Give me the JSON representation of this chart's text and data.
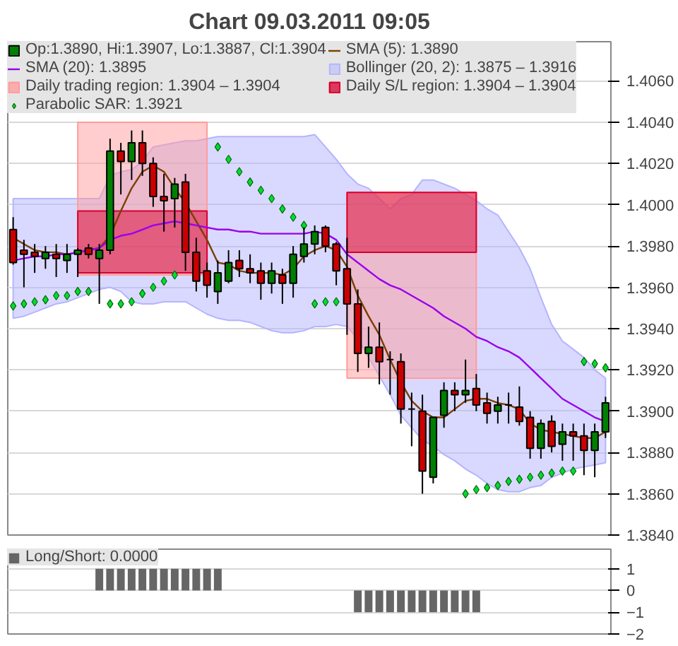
{
  "chart_data": [
    {
      "type": "candlestick",
      "title": "Chart 09.03.2011 09:05",
      "categories": [
        null,
        null,
        null,
        null,
        null,
        null,
        null,
        null,
        null,
        null,
        null,
        null,
        null,
        null,
        null,
        null,
        null,
        null,
        null,
        null,
        null,
        null,
        null,
        null,
        null,
        null,
        null,
        null,
        null,
        null,
        null,
        null,
        null,
        null,
        null,
        null,
        null,
        null,
        null,
        null,
        null,
        null,
        null,
        null,
        null,
        null,
        null,
        null,
        null,
        null,
        null,
        null,
        null,
        null,
        null,
        null
      ],
      "series": [
        {
          "type": "candlestick",
          "name": "Op:1.3890, Hi:1.3907, Lo:1.3887, Cl:1.3904",
          "ohlc": [
            [
              1.3988,
              1.3994,
              1.3971,
              1.3972
            ],
            [
              1.3978,
              1.3983,
              1.396,
              1.3976
            ],
            [
              1.3977,
              1.3981,
              1.3967,
              1.3975
            ],
            [
              1.3974,
              1.398,
              1.3969,
              1.3977
            ],
            [
              1.3976,
              1.3981,
              1.3965,
              1.3974
            ],
            [
              1.3973,
              1.3981,
              1.3967,
              1.3976
            ],
            [
              1.3976,
              1.3979,
              1.3965,
              1.3978
            ],
            [
              1.3979,
              1.3981,
              1.3974,
              1.3976
            ],
            [
              1.3974,
              1.3981,
              1.3952,
              1.3978
            ],
            [
              1.3978,
              1.4032,
              1.3976,
              1.4026
            ],
            [
              1.4026,
              1.403,
              1.4005,
              1.4021
            ],
            [
              1.4021,
              1.4036,
              1.4012,
              1.403
            ],
            [
              1.403,
              1.4036,
              1.4014,
              1.402
            ],
            [
              1.402,
              1.4023,
              1.3999,
              1.4004
            ],
            [
              1.4004,
              1.4015,
              1.3987,
              1.4002
            ],
            [
              1.4003,
              1.4013,
              1.3989,
              1.401
            ],
            [
              1.4011,
              1.4015,
              1.3968,
              1.3977
            ],
            [
              1.3977,
              1.3984,
              1.3958,
              1.3963
            ],
            [
              1.3968,
              1.3972,
              1.3955,
              1.3961
            ],
            [
              1.3958,
              1.3973,
              1.3952,
              1.3967
            ],
            [
              1.3963,
              1.3978,
              1.3962,
              1.3972
            ],
            [
              1.3973,
              1.3978,
              1.3965,
              1.3969
            ],
            [
              1.3969,
              1.3976,
              1.3962,
              1.3967
            ],
            [
              1.3968,
              1.3972,
              1.3954,
              1.3962
            ],
            [
              1.3962,
              1.3972,
              1.3957,
              1.3968
            ],
            [
              1.3966,
              1.3969,
              1.3952,
              1.3962
            ],
            [
              1.3962,
              1.398,
              1.3955,
              1.3976
            ],
            [
              1.3975,
              1.3989,
              1.3972,
              1.3981
            ],
            [
              1.3981,
              1.399,
              1.3976,
              1.3987
            ],
            [
              1.3989,
              1.399,
              1.3977,
              1.398
            ],
            [
              1.3981,
              1.3982,
              1.3961,
              1.3968
            ],
            [
              1.3969,
              1.3984,
              1.3937,
              1.3952
            ],
            [
              1.3952,
              1.3959,
              1.3919,
              1.3928
            ],
            [
              1.3928,
              1.3941,
              1.3921,
              1.3931
            ],
            [
              1.3931,
              1.3943,
              1.3913,
              1.3924
            ],
            [
              1.3925,
              1.3929,
              1.3908,
              1.3925
            ],
            [
              1.3924,
              1.3928,
              1.3894,
              1.3901
            ],
            [
              1.3901,
              1.3909,
              1.3883,
              1.3901
            ],
            [
              1.39,
              1.3908,
              1.386,
              1.3871
            ],
            [
              1.3868,
              1.3897,
              1.3865,
              1.3897
            ],
            [
              1.3898,
              1.3914,
              1.3892,
              1.391
            ],
            [
              1.391,
              1.3914,
              1.39,
              1.3908
            ],
            [
              1.3908,
              1.3925,
              1.3904,
              1.391
            ],
            [
              1.3911,
              1.3918,
              1.39,
              1.3903
            ],
            [
              1.3904,
              1.3909,
              1.3894,
              1.3899
            ],
            [
              1.39,
              1.3907,
              1.3894,
              1.3903
            ],
            [
              1.3903,
              1.3909,
              1.3894,
              1.3903
            ],
            [
              1.3902,
              1.3912,
              1.3893,
              1.3895
            ],
            [
              1.3897,
              1.39,
              1.3877,
              1.3882
            ],
            [
              1.3882,
              1.3896,
              1.3877,
              1.3894
            ],
            [
              1.3895,
              1.3898,
              1.388,
              1.3883
            ],
            [
              1.3884,
              1.3894,
              1.3876,
              1.389
            ],
            [
              1.389,
              1.3894,
              1.3876,
              1.3888
            ],
            [
              1.3888,
              1.3894,
              1.3869,
              1.3881
            ],
            [
              1.3881,
              1.3894,
              1.3868,
              1.389
            ],
            [
              1.389,
              1.3907,
              1.3887,
              1.3904
            ]
          ],
          "colors": [
            "#cc0000",
            "#cc0000",
            "#cc0000",
            "#008000",
            "#cc0000",
            "#008000",
            "#008000",
            "#cc0000",
            "#008000",
            "#008000",
            "#cc0000",
            "#008000",
            "#cc0000",
            "#cc0000",
            "#cc0000",
            "#008000",
            "#cc0000",
            "#cc0000",
            "#cc0000",
            "#008000",
            "#008000",
            "#cc0000",
            "#cc0000",
            "#cc0000",
            "#008000",
            "#cc0000",
            "#008000",
            "#008000",
            "#008000",
            "#cc0000",
            "#cc0000",
            "#cc0000",
            "#cc0000",
            "#008000",
            "#cc0000",
            "#000000",
            "#cc0000",
            "#000000",
            "#cc0000",
            "#008000",
            "#008000",
            "#cc0000",
            "#008000",
            "#cc0000",
            "#cc0000",
            "#008000",
            "#000000",
            "#cc0000",
            "#cc0000",
            "#008000",
            "#cc0000",
            "#008000",
            "#cc0000",
            "#cc0000",
            "#008000",
            "#008000"
          ]
        },
        {
          "type": "line",
          "name": "SMA (5): 1.3890",
          "color": "#7b3f00",
          "values": [
            1.3984,
            1.3981,
            1.3978,
            1.3977,
            1.3977,
            1.3976,
            1.3977,
            1.3978,
            1.3979,
            1.3985,
            1.3997,
            1.4008,
            1.4016,
            1.4019,
            1.4016,
            1.4008,
            1.4001,
            1.3992,
            1.3983,
            1.3972,
            1.3971,
            1.3968,
            1.3967,
            1.3967,
            1.3967,
            1.3966,
            1.3969,
            1.3975,
            1.3978,
            1.398,
            1.3978,
            1.397,
            1.3956,
            1.3946,
            1.3937,
            1.3925,
            1.3914,
            1.3905,
            1.39,
            1.3897,
            1.3897,
            1.3901,
            1.3905,
            1.3906,
            1.3906,
            1.3904,
            1.3903,
            1.3901,
            1.3894,
            1.3891,
            1.389,
            1.3889,
            1.3888,
            1.3887,
            1.3887,
            1.389
          ]
        },
        {
          "type": "line",
          "name": "SMA (20): 1.3895",
          "color": "#9900ee",
          "values": [
            1.3973,
            1.3974,
            1.3975,
            1.3975,
            1.3976,
            1.3976,
            1.3977,
            1.3978,
            1.3979,
            1.3983,
            1.3985,
            1.3986,
            1.3988,
            1.399,
            1.3991,
            1.3992,
            1.3991,
            1.399,
            1.3989,
            1.3988,
            1.3988,
            1.3987,
            1.3987,
            1.3986,
            1.3986,
            1.3986,
            1.3986,
            1.3986,
            1.3987,
            1.3986,
            1.3983,
            1.3976,
            1.3972,
            1.3968,
            1.3964,
            1.3961,
            1.3959,
            1.3956,
            1.3953,
            1.395,
            1.3946,
            1.3943,
            1.394,
            1.3936,
            1.3934,
            1.3931,
            1.3929,
            1.3926,
            1.3921,
            1.3916,
            1.3911,
            1.3906,
            1.3903,
            1.39,
            1.3897,
            1.3895
          ]
        },
        {
          "type": "line",
          "name": "Bollinger (20, 2): 1.3875 – 1.3916",
          "color": "#b4b4ff",
          "values": [
            null,
            null,
            null,
            null,
            null,
            null,
            null,
            null,
            null,
            null,
            null,
            null,
            null,
            null,
            null,
            null,
            null,
            null,
            null,
            null,
            null,
            null,
            null,
            null,
            null,
            null,
            null,
            null,
            null,
            null,
            null,
            null,
            null,
            null,
            null,
            null,
            null,
            null,
            null,
            null,
            null,
            null,
            null,
            null,
            null,
            null,
            null,
            null,
            null,
            null,
            null,
            null,
            null,
            null,
            null,
            null
          ],
          "upper": [
            1.4003,
            1.4003,
            1.4003,
            1.4003,
            1.4003,
            1.4003,
            1.4003,
            1.4003,
            1.4003,
            1.4014,
            1.4016,
            1.4017,
            1.4021,
            1.4028,
            1.4029,
            1.403,
            1.4031,
            1.4031,
            1.4032,
            1.4033,
            1.4033,
            1.4033,
            1.4033,
            1.4033,
            1.4033,
            1.4033,
            1.4033,
            1.4033,
            1.4034,
            1.4028,
            1.4022,
            1.4015,
            1.401,
            1.4008,
            1.4003,
            1.3998,
            1.4003,
            1.4005,
            1.4012,
            1.4012,
            1.401,
            1.4008,
            1.4005,
            1.4002,
            1.3998,
            1.3995,
            1.3987,
            1.3979,
            1.3969,
            1.3955,
            1.3942,
            1.3934,
            1.393,
            1.3926,
            1.392,
            1.3916
          ],
          "lower": [
            1.3945,
            1.3946,
            1.3948,
            1.395,
            1.3952,
            1.3953,
            1.3955,
            1.3957,
            1.3959,
            1.396,
            1.3958,
            1.3953,
            1.3952,
            1.3952,
            1.3953,
            1.3953,
            1.3953,
            1.395,
            1.3947,
            1.3945,
            1.3944,
            1.3944,
            1.3943,
            1.3941,
            1.3939,
            1.3938,
            1.3938,
            1.3939,
            1.3941,
            1.3941,
            1.3942,
            1.3941,
            1.3935,
            1.3926,
            1.3917,
            1.3908,
            1.3898,
            1.3892,
            1.3886,
            1.3883,
            1.3879,
            1.3876,
            1.3872,
            1.3869,
            1.3865,
            1.3862,
            1.3861,
            1.3861,
            1.3863,
            1.3864,
            1.3868,
            1.387,
            1.3872,
            1.3873,
            1.3874,
            1.3875
          ]
        },
        {
          "type": "line",
          "name": "Daily trading region: 1.3904 – 1.3904",
          "color": "#ff9c9c",
          "values": [
            null,
            null,
            null,
            null,
            null,
            null,
            null,
            null,
            null,
            null,
            null,
            null,
            null,
            null,
            null,
            null,
            null,
            null,
            null,
            null,
            null,
            null,
            null,
            null,
            null,
            null,
            null,
            null,
            null,
            null,
            null,
            null,
            null,
            null,
            null,
            null,
            null,
            null,
            null,
            null,
            null,
            null,
            null,
            null,
            null,
            null,
            null,
            null,
            null,
            null,
            null,
            null,
            null,
            null,
            null,
            null
          ],
          "lower": [
            null,
            null,
            null,
            null,
            null,
            null,
            1.3966,
            1.3966,
            1.3966,
            1.3966,
            1.3966,
            1.3966,
            1.3966,
            1.3966,
            1.3966,
            1.3966,
            1.3966,
            1.3966,
            1.3966,
            null,
            null,
            null,
            null,
            null,
            null,
            null,
            null,
            null,
            null,
            null,
            null,
            1.3916,
            1.3916,
            1.3916,
            1.3916,
            1.3916,
            1.3916,
            1.3916,
            1.3916,
            1.3916,
            1.3916,
            1.3916,
            1.3916,
            1.3916,
            null,
            null,
            null,
            null,
            null,
            null,
            null,
            null,
            null,
            null,
            null,
            null
          ],
          "upper": [
            null,
            null,
            null,
            null,
            null,
            null,
            1.404,
            1.404,
            1.404,
            1.404,
            1.404,
            1.404,
            1.404,
            1.404,
            1.404,
            1.404,
            1.404,
            1.404,
            1.404,
            null,
            null,
            null,
            null,
            null,
            null,
            null,
            null,
            null,
            null,
            null,
            null,
            1.4006,
            1.4006,
            1.4006,
            1.4006,
            1.4006,
            1.4006,
            1.4006,
            1.4006,
            1.4006,
            1.4006,
            1.4006,
            1.4006,
            1.4006,
            null,
            null,
            null,
            null,
            null,
            null,
            null,
            null,
            null,
            null,
            null,
            null
          ]
        },
        {
          "type": "line",
          "name": "Daily S/L region: 1.3904 – 1.3904",
          "color": "#d80030",
          "values": [
            null,
            null,
            null,
            null,
            null,
            null,
            null,
            null,
            null,
            null,
            null,
            null,
            null,
            null,
            null,
            null,
            null,
            null,
            null,
            null,
            null,
            null,
            null,
            null,
            null,
            null,
            null,
            null,
            null,
            null,
            null,
            null,
            null,
            null,
            null,
            null,
            null,
            null,
            null,
            null,
            null,
            null,
            null,
            null,
            null,
            null,
            null,
            null,
            null,
            null,
            null,
            null,
            null,
            null,
            null,
            null
          ],
          "lower": [
            null,
            null,
            null,
            null,
            null,
            null,
            1.3967,
            1.3967,
            1.3967,
            1.3967,
            1.3967,
            1.3967,
            1.3967,
            1.3967,
            1.3967,
            1.3967,
            1.3967,
            1.3967,
            1.3967,
            null,
            null,
            null,
            null,
            null,
            null,
            null,
            null,
            null,
            null,
            null,
            null,
            1.3977,
            1.3977,
            1.3977,
            1.3977,
            1.3977,
            1.3977,
            1.3977,
            1.3977,
            1.3977,
            1.3977,
            1.3977,
            1.3977,
            1.3977,
            null,
            null,
            null,
            null,
            null,
            null,
            null,
            null,
            null,
            null,
            null,
            null
          ],
          "upper": [
            null,
            null,
            null,
            null,
            null,
            null,
            1.3997,
            1.3997,
            1.3997,
            1.3997,
            1.3997,
            1.3997,
            1.3997,
            1.3997,
            1.3997,
            1.3997,
            1.3997,
            1.3997,
            1.3997,
            null,
            null,
            null,
            null,
            null,
            null,
            null,
            null,
            null,
            null,
            null,
            null,
            1.4006,
            1.4006,
            1.4006,
            1.4006,
            1.4006,
            1.4006,
            1.4006,
            1.4006,
            1.4006,
            1.4006,
            1.4006,
            1.4006,
            1.4006,
            null,
            null,
            null,
            null,
            null,
            null,
            null,
            null,
            null,
            null,
            null,
            null
          ]
        },
        {
          "type": "scatter",
          "name": "Parabolic SAR: 1.3921",
          "color": "#00dd33",
          "marker": "diamond",
          "values": [
            1.3951,
            1.3952,
            1.3953,
            1.3954,
            1.3956,
            1.3956,
            1.3958,
            1.3958,
            null,
            1.3952,
            1.3952,
            1.3953,
            1.3957,
            1.396,
            1.3963,
            1.3966,
            null,
            null,
            null,
            1.4028,
            1.4022,
            1.4016,
            1.4011,
            1.4007,
            1.4003,
            1.3998,
            1.3994,
            1.399,
            1.3952,
            1.3953,
            1.3953,
            null,
            null,
            null,
            null,
            null,
            null,
            null,
            null,
            null,
            null,
            null,
            1.386,
            1.3862,
            1.3863,
            1.3864,
            1.3866,
            1.3867,
            1.3868,
            1.3869,
            1.387,
            1.3871,
            1.3871,
            1.3924,
            1.3923,
            1.3921
          ]
        }
      ],
      "ylim": [
        1.384,
        1.4079
      ],
      "yticks": [
        {
          "value": 1.384,
          "label": "1.3840"
        },
        {
          "value": 1.386,
          "label": "1.3860"
        },
        {
          "value": 1.388,
          "label": "1.3880"
        },
        {
          "value": 1.39,
          "label": "1.3900"
        },
        {
          "value": 1.392,
          "label": "1.3920"
        },
        {
          "value": 1.394,
          "label": "1.3940"
        },
        {
          "value": 1.396,
          "label": "1.3960"
        },
        {
          "value": 1.398,
          "label": "1.3980"
        },
        {
          "value": 1.4,
          "label": "1.4000"
        },
        {
          "value": 1.402,
          "label": "1.4020"
        },
        {
          "value": 1.404,
          "label": "1.4040"
        },
        {
          "value": 1.406,
          "label": "1.4060"
        }
      ],
      "grid": "y",
      "legend": "top left",
      "tick_labels": "y"
    },
    {
      "type": "bar",
      "categories": [
        null,
        null,
        null,
        null,
        null,
        null,
        null,
        null,
        null,
        null,
        null,
        null,
        null,
        null,
        null,
        null,
        null,
        null,
        null,
        null,
        null,
        null,
        null,
        null,
        null,
        null,
        null,
        null,
        null,
        null,
        null,
        null,
        null,
        null,
        null,
        null,
        null,
        null,
        null,
        null,
        null,
        null,
        null,
        null,
        null,
        null,
        null,
        null,
        null,
        null,
        null,
        null,
        null,
        null,
        null,
        null
      ],
      "series": [
        {
          "name": "Long/Short: 0.0000",
          "color": "#666666",
          "values": [
            0,
            0,
            0,
            0,
            0,
            0,
            0,
            0,
            1,
            1,
            1,
            1,
            1,
            1,
            1,
            1,
            1,
            1,
            1,
            1,
            0,
            0,
            0,
            0,
            0,
            0,
            0,
            0,
            0,
            0,
            0,
            0,
            -1,
            -1,
            -1,
            -1,
            -1,
            -1,
            -1,
            -1,
            -1,
            -1,
            -1,
            -1,
            0,
            0,
            0,
            0,
            0,
            0,
            0,
            0,
            0,
            0,
            0,
            0
          ]
        }
      ],
      "ylim": [
        -2,
        1.9
      ],
      "yticks": [
        -2,
        -1,
        0,
        1
      ],
      "grid": "y",
      "legend": "top left",
      "tick_labels": "y"
    }
  ]
}
